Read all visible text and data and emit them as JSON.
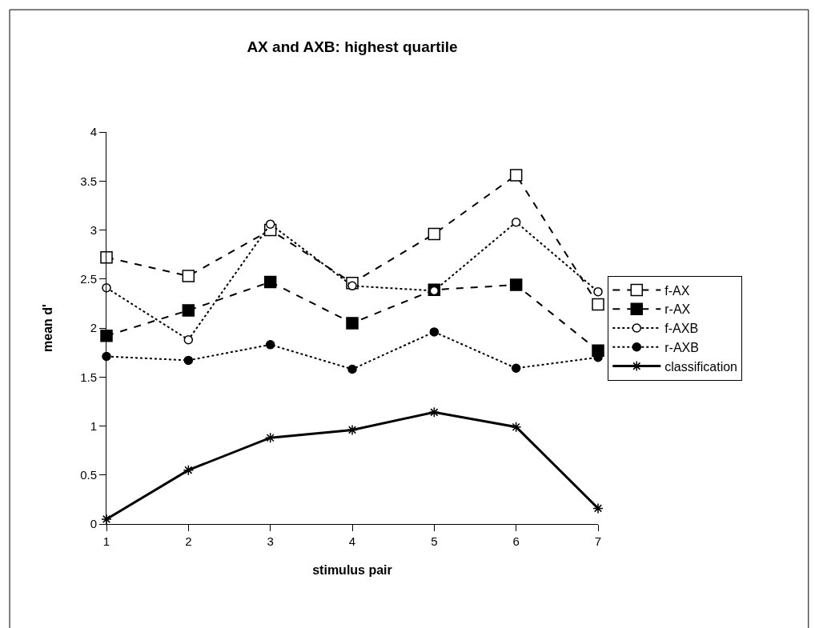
{
  "chart_data": {
    "type": "line",
    "title": "AX and AXB: highest quartile",
    "xlabel": "stimulus pair",
    "ylabel": "mean d'",
    "x": [
      1,
      2,
      3,
      4,
      5,
      6,
      7
    ],
    "xlim": [
      1,
      7
    ],
    "xticks": [
      1,
      2,
      3,
      4,
      5,
      6,
      7
    ],
    "ylim": [
      0,
      4
    ],
    "yticks": [
      0,
      0.5,
      1,
      1.5,
      2,
      2.5,
      3,
      3.5,
      4
    ],
    "grid": false,
    "legend": "right",
    "series": [
      {
        "name": "f-AX",
        "color": "#000000",
        "marker": "square",
        "line_style": "dashed",
        "values": [
          2.72,
          2.53,
          3.0,
          2.46,
          2.96,
          3.56,
          2.24
        ]
      },
      {
        "name": "r-AX",
        "color": "#000000",
        "marker": "square",
        "line_style": "dashed",
        "values": [
          1.92,
          2.18,
          2.47,
          2.05,
          2.39,
          2.44,
          1.77
        ]
      },
      {
        "name": "f-AXB",
        "color": "#000000",
        "marker": "circle",
        "line_style": "dotted",
        "values": [
          2.41,
          1.88,
          3.06,
          2.43,
          2.38,
          3.08,
          2.37
        ]
      },
      {
        "name": "r-AXB",
        "color": "#000000",
        "marker": "circle",
        "line_style": "dotted",
        "values": [
          1.71,
          1.67,
          1.83,
          1.58,
          1.96,
          1.59,
          1.7
        ]
      },
      {
        "name": "classification",
        "color": "#000000",
        "marker": "cross",
        "line_style": "solid",
        "values": [
          0.05,
          0.55,
          0.88,
          0.96,
          1.14,
          0.99,
          0.16
        ]
      }
    ]
  }
}
